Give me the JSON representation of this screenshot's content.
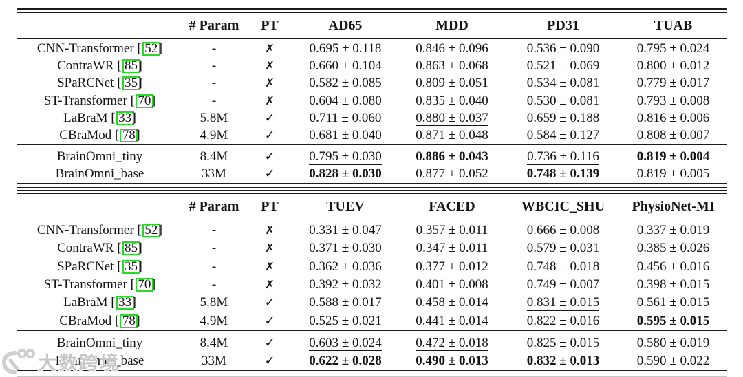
{
  "marks": {
    "check": "✓",
    "cross": "✗"
  },
  "colors": {
    "text": "#141414",
    "citation_box_border": "#29d829",
    "watermark_gray": "#c7c7c7"
  },
  "watermark": {
    "text": "大数跨境",
    "logo": "daxu-kuajing-logo"
  },
  "tables": [
    {
      "name": "results-table-top",
      "headers": [
        "",
        "# Param",
        "PT",
        "AD65",
        "MDD",
        "PD31",
        "TUAB"
      ],
      "rows": [
        {
          "model": "CNN-Transformer",
          "cite": "52",
          "param": "-",
          "pt": "cross",
          "vals": [
            {
              "t": "0.695 ± 0.118"
            },
            {
              "t": "0.846 ± 0.096"
            },
            {
              "t": "0.536 ± 0.090"
            },
            {
              "t": "0.795 ± 0.024"
            }
          ]
        },
        {
          "model": "ContraWR",
          "cite": "85",
          "param": "-",
          "pt": "cross",
          "vals": [
            {
              "t": "0.660 ± 0.104"
            },
            {
              "t": "0.863 ± 0.068"
            },
            {
              "t": "0.521 ± 0.069"
            },
            {
              "t": "0.800 ± 0.012"
            }
          ]
        },
        {
          "model": "SPaRCNet",
          "cite": "35",
          "param": "-",
          "pt": "cross",
          "vals": [
            {
              "t": "0.582 ± 0.085"
            },
            {
              "t": "0.809 ± 0.051"
            },
            {
              "t": "0.534 ± 0.081"
            },
            {
              "t": "0.779 ± 0.017"
            }
          ]
        },
        {
          "model": "ST-Transformer",
          "cite": "70",
          "param": "-",
          "pt": "cross",
          "vals": [
            {
              "t": "0.604 ± 0.080"
            },
            {
              "t": "0.835 ± 0.040"
            },
            {
              "t": "0.530 ± 0.081"
            },
            {
              "t": "0.793 ± 0.008"
            }
          ]
        },
        {
          "model": "LaBraM",
          "cite": "33",
          "param": "5.8M",
          "pt": "check",
          "vals": [
            {
              "t": "0.711 ± 0.060"
            },
            {
              "t": "0.880 ± 0.037",
              "u": true
            },
            {
              "t": "0.659 ± 0.188"
            },
            {
              "t": "0.816 ± 0.006"
            }
          ]
        },
        {
          "model": "CBraMod",
          "cite": "78",
          "param": "4.9M",
          "pt": "check",
          "vals": [
            {
              "t": "0.681 ± 0.040"
            },
            {
              "t": "0.871 ± 0.048"
            },
            {
              "t": "0.584 ± 0.127"
            },
            {
              "t": "0.808 ± 0.007"
            }
          ]
        },
        {
          "model": "BrainOmni_tiny",
          "cite": null,
          "param": "8.4M",
          "pt": "check",
          "group": true,
          "vals": [
            {
              "t": "0.795 ± 0.030",
              "u": true
            },
            {
              "t": "0.886 ± 0.043",
              "b": true
            },
            {
              "t": "0.736 ± 0.116",
              "u": true
            },
            {
              "t": "0.819 ± 0.004",
              "b": true
            }
          ]
        },
        {
          "model": "BrainOmni_base",
          "cite": null,
          "param": "33M",
          "pt": "check",
          "vals": [
            {
              "t": "0.828 ± 0.030",
              "b": true
            },
            {
              "t": "0.877 ± 0.052"
            },
            {
              "t": "0.748 ± 0.139",
              "b": true
            },
            {
              "t": "0.819 ± 0.005",
              "u": true
            }
          ]
        }
      ]
    },
    {
      "name": "results-table-bottom",
      "headers": [
        "",
        "# Param",
        "PT",
        "TUEV",
        "FACED",
        "WBCIC_SHU",
        "PhysioNet-MI"
      ],
      "rows": [
        {
          "model": "CNN-Transformer",
          "cite": "52",
          "param": "-",
          "pt": "cross",
          "vals": [
            {
              "t": "0.331 ± 0.047"
            },
            {
              "t": "0.357 ± 0.011"
            },
            {
              "t": "0.666 ± 0.008"
            },
            {
              "t": "0.337 ± 0.019"
            }
          ]
        },
        {
          "model": "ContraWR",
          "cite": "85",
          "param": "-",
          "pt": "cross",
          "vals": [
            {
              "t": "0.371 ± 0.030"
            },
            {
              "t": "0.347 ± 0.011"
            },
            {
              "t": "0.579 ± 0.031"
            },
            {
              "t": "0.385 ± 0.026"
            }
          ]
        },
        {
          "model": "SPaRCNet",
          "cite": "35",
          "param": "-",
          "pt": "cross",
          "vals": [
            {
              "t": "0.362 ± 0.036"
            },
            {
              "t": "0.377 ± 0.012"
            },
            {
              "t": "0.748 ± 0.018"
            },
            {
              "t": "0.456 ± 0.016"
            }
          ]
        },
        {
          "model": "ST-Transformer",
          "cite": "70",
          "param": "-",
          "pt": "cross",
          "vals": [
            {
              "t": "0.392 ± 0.032"
            },
            {
              "t": "0.401 ± 0.008"
            },
            {
              "t": "0.749 ± 0.007"
            },
            {
              "t": "0.398 ± 0.015"
            }
          ]
        },
        {
          "model": "LaBraM",
          "cite": "33",
          "param": "5.8M",
          "pt": "check",
          "vals": [
            {
              "t": "0.588 ± 0.017"
            },
            {
              "t": "0.458 ± 0.014"
            },
            {
              "t": "0.831 ± 0.015",
              "u": true
            },
            {
              "t": "0.561 ± 0.015"
            }
          ]
        },
        {
          "model": "CBraMod",
          "cite": "78",
          "param": "4.9M",
          "pt": "check",
          "vals": [
            {
              "t": "0.525 ± 0.021"
            },
            {
              "t": "0.441 ± 0.014"
            },
            {
              "t": "0.822 ± 0.016"
            },
            {
              "t": "0.595 ± 0.015",
              "b": true
            }
          ]
        },
        {
          "model": "BrainOmni_tiny",
          "cite": null,
          "param": "8.4M",
          "pt": "check",
          "group": true,
          "vals": [
            {
              "t": "0.603 ± 0.024",
              "u": true
            },
            {
              "t": "0.472 ± 0.018",
              "u": true
            },
            {
              "t": "0.825 ± 0.015"
            },
            {
              "t": "0.580 ± 0.019"
            }
          ]
        },
        {
          "model": "BrainOmni_base",
          "cite": null,
          "param": "33M",
          "pt": "check",
          "vals": [
            {
              "t": "0.622 ± 0.028",
              "b": true
            },
            {
              "t": "0.490 ± 0.013",
              "b": true
            },
            {
              "t": "0.832 ± 0.013",
              "b": true
            },
            {
              "t": "0.590 ± 0.022",
              "u": true
            }
          ]
        }
      ]
    }
  ]
}
